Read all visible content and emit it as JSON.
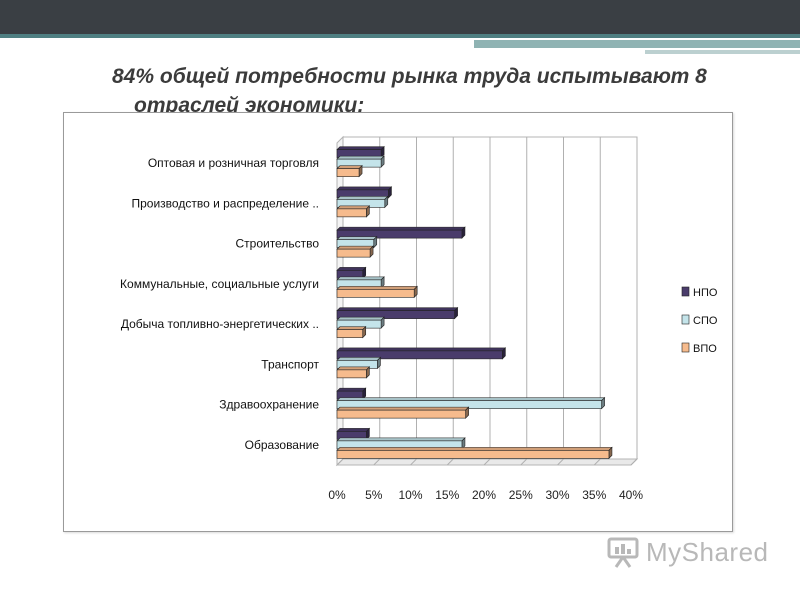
{
  "slide": {
    "title_line1": "84% общей потребности рынка труда испытывают 8",
    "title_line2": "отраслей экономики:",
    "watermark": "MyShared"
  },
  "colors": {
    "НПО": "#4a3c6b",
    "СПО": "#c4e4ea",
    "ВПО": "#f6bb8d"
  },
  "chart_data": {
    "type": "bar",
    "orientation": "horizontal",
    "categories": [
      "Оптовая и розничная торговля",
      "Производство и распределение ..",
      "Строительство",
      "Коммунальные, социальные услуги",
      "Добыча топливно-энергетических ..",
      "Транспорт",
      "Здравоохранение",
      "Образование"
    ],
    "series": [
      {
        "name": "НПО",
        "values": [
          6,
          7,
          17,
          3.5,
          16,
          22.5,
          3.5,
          4
        ]
      },
      {
        "name": "СПО",
        "values": [
          6,
          6.5,
          5,
          6,
          6,
          5.5,
          36,
          17
        ]
      },
      {
        "name": "ВПО",
        "values": [
          3,
          4,
          4.5,
          10.5,
          3.5,
          4,
          17.5,
          37
        ]
      }
    ],
    "xlim": [
      0,
      40
    ],
    "ticks": [
      "0%",
      "5%",
      "10%",
      "15%",
      "20%",
      "25%",
      "30%",
      "35%",
      "40%"
    ],
    "tick_values": [
      0,
      5,
      10,
      15,
      20,
      25,
      30,
      35,
      40
    ],
    "grid": true,
    "legend_position": "right"
  }
}
